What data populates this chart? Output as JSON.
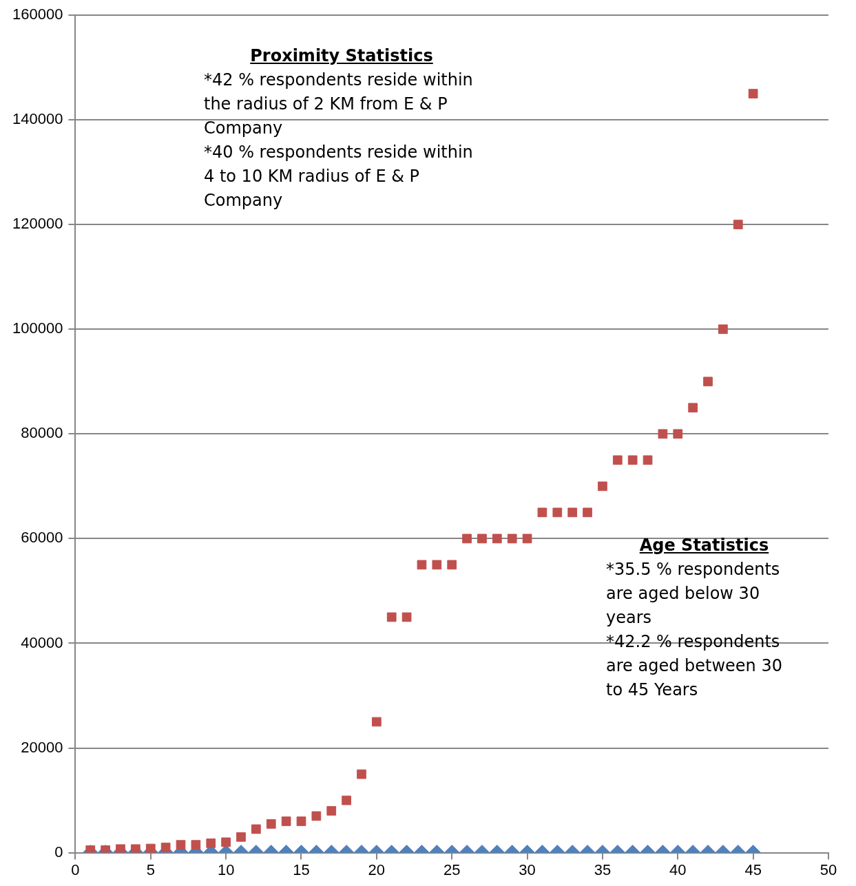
{
  "chart_data": {
    "type": "scatter",
    "x": [
      1,
      2,
      3,
      4,
      5,
      6,
      7,
      8,
      9,
      10,
      11,
      12,
      13,
      14,
      15,
      16,
      17,
      18,
      19,
      20,
      21,
      22,
      23,
      24,
      25,
      26,
      27,
      28,
      29,
      30,
      31,
      32,
      33,
      34,
      35,
      36,
      37,
      38,
      39,
      40,
      41,
      42,
      43,
      44,
      45
    ],
    "series": [
      {
        "color": "#4f81bd",
        "marker": "diamond",
        "values": [
          0,
          0,
          0,
          0,
          0,
          0,
          0,
          0,
          0,
          0,
          0,
          0,
          0,
          0,
          0,
          0,
          0,
          0,
          0,
          0,
          0,
          0,
          0,
          0,
          0,
          0,
          0,
          0,
          0,
          0,
          0,
          0,
          0,
          0,
          0,
          0,
          0,
          0,
          0,
          0,
          0,
          0,
          0,
          0,
          0
        ]
      },
      {
        "color": "#c0504d",
        "marker": "square",
        "values": [
          500,
          500,
          700,
          700,
          800,
          1000,
          1500,
          1500,
          1800,
          2000,
          3000,
          4500,
          5500,
          6000,
          6000,
          7000,
          8000,
          10000,
          15000,
          25000,
          45000,
          45000,
          55000,
          55000,
          55000,
          60000,
          60000,
          60000,
          60000,
          60000,
          65000,
          65000,
          65000,
          65000,
          70000,
          75000,
          75000,
          75000,
          80000,
          80000,
          85000,
          90000,
          100000,
          120000,
          145000
        ]
      }
    ],
    "xlim": [
      0,
      50
    ],
    "xticks": [
      0,
      5,
      10,
      15,
      20,
      25,
      30,
      35,
      40,
      45,
      50
    ],
    "ylim": [
      0,
      160000
    ],
    "yticks": [
      0,
      20000,
      40000,
      60000,
      80000,
      100000,
      120000,
      140000,
      160000
    ],
    "grid": "y",
    "legend": false,
    "annotations": [
      "Proximity Statistics",
      "*42 % respondents reside within the radius of 2 KM from E & P Company",
      "*40 % respondents reside within 4 to 10 KM radius of E & P Company",
      "Age Statistics",
      "*35.5 % respondents are aged below 30 years",
      "*42.2 % respondents are aged between 30 to 45 Years"
    ]
  }
}
